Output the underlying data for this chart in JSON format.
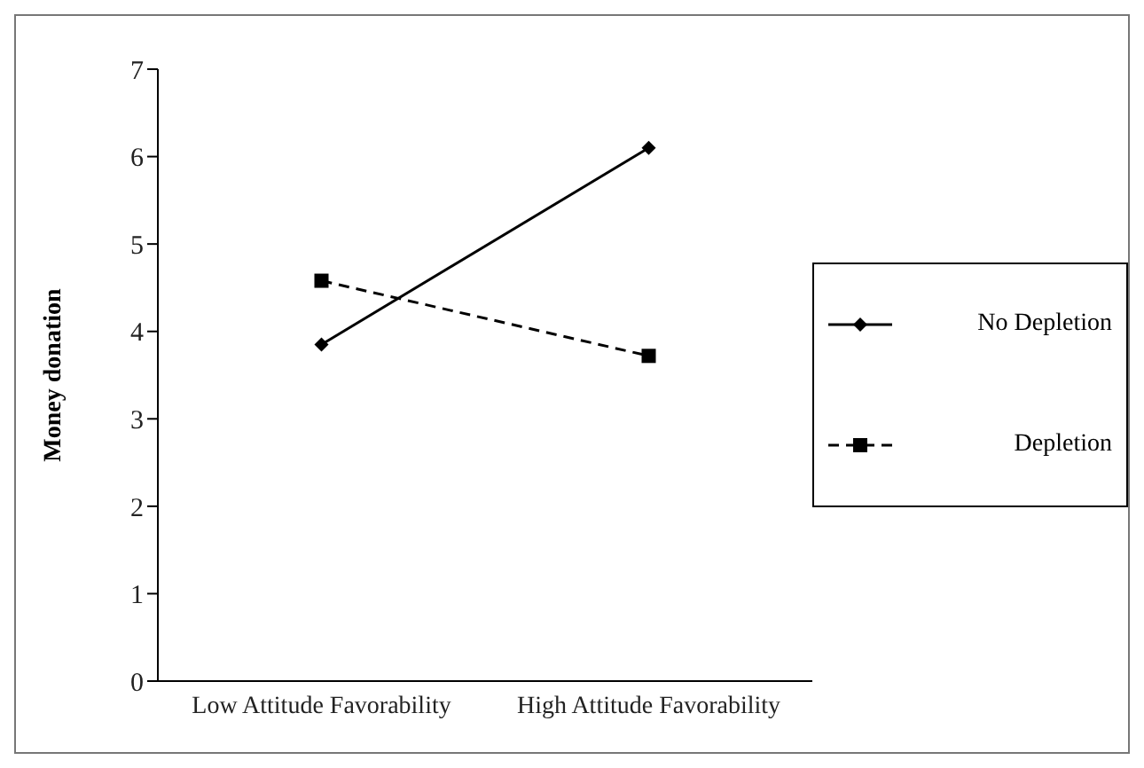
{
  "chart_data": {
    "type": "line",
    "ylabel": "Money donation",
    "categories": [
      "Low Attitude Favorability",
      "High Attitude Favorability"
    ],
    "series": [
      {
        "name": "No Depletion",
        "color": "#000000",
        "values": [
          3.85,
          6.1
        ],
        "marker": "diamond",
        "line_style": "solid"
      },
      {
        "name": "Depletion",
        "color": "#000000",
        "values": [
          4.58,
          3.72
        ],
        "marker": "square",
        "line_style": "dashed"
      }
    ],
    "ylim": [
      0,
      7
    ],
    "yticks": [
      0,
      1,
      2,
      3,
      4,
      5,
      6,
      7
    ],
    "grid": false,
    "legend": "right"
  }
}
